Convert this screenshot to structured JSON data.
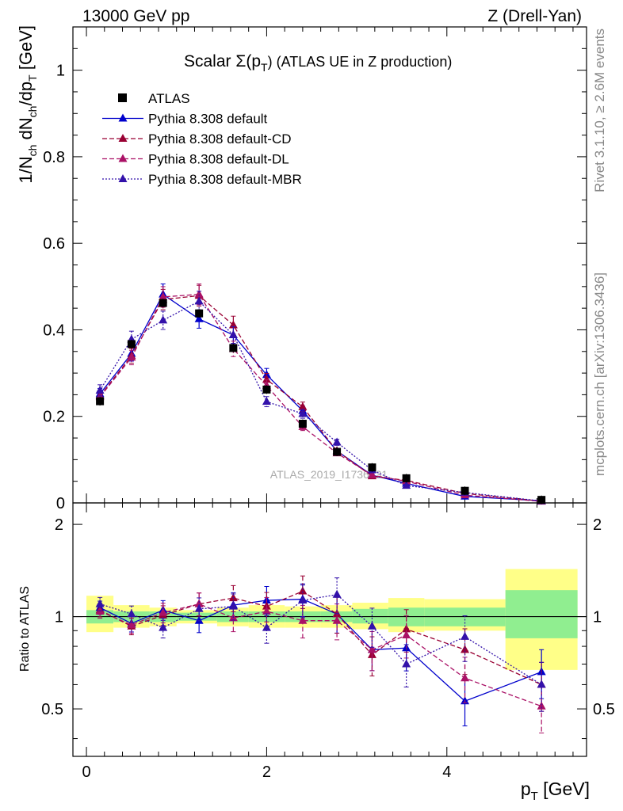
{
  "header": {
    "left": "13000 GeV pp",
    "right": "Z (Drell-Yan)"
  },
  "side_labels": {
    "rivet": "Rivet 3.1.10, ≥ 2.6M events",
    "mcplots": "mcplots.cern.ch [arXiv:1306.3436]"
  },
  "watermark": "ATLAS_2019_I1736531",
  "chart_data": [
    {
      "type": "line",
      "title": "Scalar Σ(pT) (ATLAS UE in Z production)",
      "title_main": "Scalar Σ(p",
      "title_sub": "T",
      "title_rest": ") (ATLAS UE in Z production)",
      "xlabel": "pT [GeV]",
      "ylabel": "1/Nch dNch/dpT [GeV]",
      "xlim": [
        -0.15,
        5.55
      ],
      "ylim": [
        0,
        1.1
      ],
      "xticks": [
        0,
        2,
        4
      ],
      "yticks": [
        0,
        0.2,
        0.4,
        0.6,
        0.8,
        1
      ],
      "ytick_labels": [
        "0",
        "0.2",
        "0.4",
        "0.6",
        "0.8",
        "1"
      ],
      "x": [
        0.15,
        0.5,
        0.85,
        1.25,
        1.63,
        2.0,
        2.4,
        2.78,
        3.17,
        3.55,
        4.2,
        5.05
      ],
      "reference": {
        "name": "ATLAS",
        "values": [
          0.235,
          0.367,
          0.462,
          0.438,
          0.358,
          0.262,
          0.183,
          0.118,
          0.082,
          0.057,
          0.028,
          0.007
        ]
      },
      "series": [
        {
          "name": "Pythia 8.308 default",
          "color": "#0000cc",
          "style": "solid",
          "values": [
            0.252,
            0.345,
            0.482,
            0.425,
            0.388,
            0.296,
            0.213,
            0.12,
            0.064,
            0.045,
            0.015,
            0.005
          ]
        },
        {
          "name": "Pythia 8.308 default-CD",
          "color": "#990033",
          "style": "dashed",
          "values": [
            0.247,
            0.34,
            0.47,
            0.479,
            0.411,
            0.285,
            0.222,
            0.12,
            0.062,
            0.052,
            0.022,
            0.004
          ]
        },
        {
          "name": "Pythia 8.308 default-DL",
          "color": "#aa1166",
          "style": "dashed",
          "values": [
            0.245,
            0.336,
            0.476,
            0.482,
            0.356,
            0.271,
            0.176,
            0.115,
            0.064,
            0.05,
            0.018,
            0.0035
          ]
        },
        {
          "name": "Pythia 8.308 default-MBR",
          "color": "#3311aa",
          "style": "dotted",
          "values": [
            0.26,
            0.378,
            0.422,
            0.466,
            0.388,
            0.234,
            0.206,
            0.14,
            0.076,
            0.04,
            0.024,
            0.0043
          ]
        }
      ],
      "legend": [
        "ATLAS",
        "Pythia 8.308 default",
        "Pythia 8.308 default-CD",
        "Pythia 8.308 default-DL",
        "Pythia 8.308 default-MBR"
      ]
    },
    {
      "type": "line",
      "title": "",
      "xlabel": "pT [GeV]",
      "ylabel": "Ratio to ATLAS",
      "xlim": [
        -0.15,
        5.55
      ],
      "ylim": [
        0.35,
        2.35
      ],
      "yscale": "log",
      "yticks": [
        0.5,
        1,
        2
      ],
      "ytick_labels": [
        "0.5",
        "1",
        "2"
      ],
      "xtick_labels": [
        "0",
        "2",
        "4"
      ],
      "x": [
        0.15,
        0.5,
        0.85,
        1.25,
        1.63,
        2.0,
        2.4,
        2.78,
        3.17,
        3.55,
        4.2,
        5.05
      ],
      "bands": {
        "edges": [
          0.0,
          0.3,
          0.7,
          1.0,
          1.45,
          1.8,
          2.2,
          2.6,
          2.95,
          3.35,
          3.75,
          4.65,
          5.45
        ],
        "inner": [
          [
            0.95,
            1.05
          ],
          [
            0.96,
            1.04
          ],
          [
            0.96,
            1.04
          ],
          [
            0.97,
            1.03
          ],
          [
            0.96,
            1.04
          ],
          [
            0.96,
            1.04
          ],
          [
            0.96,
            1.04
          ],
          [
            0.96,
            1.04
          ],
          [
            0.95,
            1.06
          ],
          [
            0.93,
            1.07
          ],
          [
            0.93,
            1.07
          ],
          [
            0.85,
            1.22
          ]
        ],
        "outer": [
          [
            0.89,
            1.17
          ],
          [
            0.92,
            1.09
          ],
          [
            0.93,
            1.07
          ],
          [
            0.95,
            1.05
          ],
          [
            0.93,
            1.07
          ],
          [
            0.92,
            1.09
          ],
          [
            0.92,
            1.08
          ],
          [
            0.92,
            1.09
          ],
          [
            0.91,
            1.11
          ],
          [
            0.89,
            1.15
          ],
          [
            0.9,
            1.14
          ],
          [
            0.67,
            1.43
          ]
        ]
      },
      "series": [
        {
          "name": "Pythia 8.308 default",
          "color": "#0000cc",
          "style": "solid",
          "values": [
            1.07,
            0.95,
            1.05,
            0.97,
            1.09,
            1.13,
            1.14,
            1.02,
            0.78,
            0.79,
            0.53,
            0.66
          ]
        },
        {
          "name": "Pythia 8.308 default-CD",
          "color": "#990033",
          "style": "dashed",
          "values": [
            1.05,
            0.93,
            1.01,
            1.1,
            1.15,
            1.08,
            1.21,
            1.02,
            0.75,
            0.91,
            0.78,
            0.6
          ]
        },
        {
          "name": "Pythia 8.308 default-DL",
          "color": "#aa1166",
          "style": "dashed",
          "values": [
            1.04,
            0.94,
            1.03,
            1.1,
            0.99,
            1.04,
            0.97,
            0.97,
            0.78,
            0.87,
            0.63,
            0.51
          ]
        },
        {
          "name": "Pythia 8.308 default-MBR",
          "color": "#3311aa",
          "style": "dotted",
          "values": [
            1.1,
            1.02,
            0.92,
            1.06,
            1.08,
            0.92,
            1.13,
            1.18,
            0.93,
            0.7,
            0.86,
            0.6
          ]
        }
      ]
    }
  ]
}
